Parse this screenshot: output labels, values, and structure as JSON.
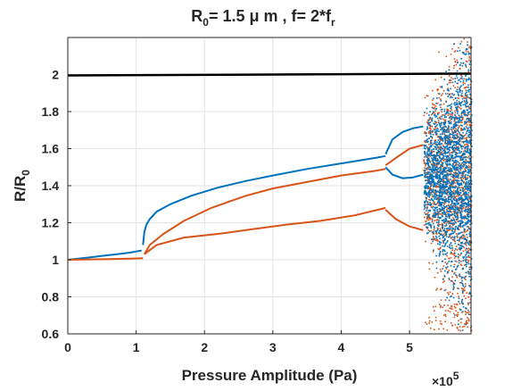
{
  "chart_data": {
    "type": "scatter",
    "title": {
      "main": "R",
      "main_sub": "0",
      "mid": "= 1.5 μ m , f= 2*f",
      "end_sub": "r"
    },
    "xlabel": "Pressure Amplitude (Pa)",
    "ylabel": {
      "main": "R/R",
      "sub": "0"
    },
    "x_multiplier": {
      "base": "×10",
      "exp": "5"
    },
    "xlim": [
      0,
      5.9
    ],
    "ylim": [
      0.6,
      2.2
    ],
    "x_ticks": [
      0,
      1,
      2,
      3,
      4,
      5
    ],
    "y_ticks": [
      0.6,
      0.8,
      1,
      1.2,
      1.4,
      1.6,
      1.8,
      2
    ],
    "grid": true,
    "series": [
      {
        "color": "#0072BD",
        "segments": [
          {
            "x": [
              0,
              0.3,
              0.6,
              0.9,
              1.08
            ],
            "y": [
              1.0,
              1.012,
              1.025,
              1.038,
              1.05
            ]
          },
          {
            "x": [
              1.1,
              1.12,
              1.15,
              1.2,
              1.3,
              1.5,
              1.8,
              2.2,
              2.6,
              3.0,
              3.5,
              4.0,
              4.5,
              4.65
            ],
            "y": [
              1.08,
              1.15,
              1.19,
              1.22,
              1.26,
              1.3,
              1.345,
              1.39,
              1.425,
              1.455,
              1.49,
              1.52,
              1.55,
              1.56
            ]
          },
          {
            "x": [
              4.65,
              4.75,
              4.9,
              5.05,
              5.2
            ],
            "y": [
              1.57,
              1.65,
              1.69,
              1.71,
              1.72
            ]
          },
          {
            "x": [
              4.65,
              4.75,
              4.9,
              5.05,
              5.2
            ],
            "y": [
              1.5,
              1.46,
              1.44,
              1.445,
              1.46
            ]
          }
        ]
      },
      {
        "color": "#D95319",
        "segments": [
          {
            "x": [
              0,
              0.3,
              0.6,
              0.9,
              1.1
            ],
            "y": [
              1.0,
              1.002,
              1.004,
              1.006,
              1.008
            ]
          },
          {
            "x": [
              1.12,
              1.2,
              1.4,
              1.7,
              2.1,
              2.6,
              3.0,
              3.5,
              4.0,
              4.5,
              4.65
            ],
            "y": [
              1.03,
              1.08,
              1.14,
              1.21,
              1.28,
              1.345,
              1.385,
              1.42,
              1.455,
              1.48,
              1.49
            ]
          },
          {
            "x": [
              1.12,
              1.3,
              1.7,
              2.2,
              2.7,
              3.2,
              3.7,
              4.2,
              4.65
            ],
            "y": [
              1.03,
              1.08,
              1.12,
              1.14,
              1.165,
              1.19,
              1.21,
              1.24,
              1.28
            ]
          },
          {
            "x": [
              4.65,
              4.8,
              5.0,
              5.2
            ],
            "y": [
              1.51,
              1.55,
              1.6,
              1.62
            ]
          },
          {
            "x": [
              4.65,
              4.8,
              5.0,
              5.2
            ],
            "y": [
              1.27,
              1.22,
              1.18,
              1.16
            ]
          }
        ]
      }
    ],
    "reference_line": {
      "color": "#000000",
      "x": [
        0,
        5.9
      ],
      "y": [
        1.995,
        2.005
      ]
    },
    "chaotic_region": {
      "x_start": 5.2,
      "x_end": 5.9,
      "y_min": 0.62,
      "y_max": 2.2
    }
  }
}
